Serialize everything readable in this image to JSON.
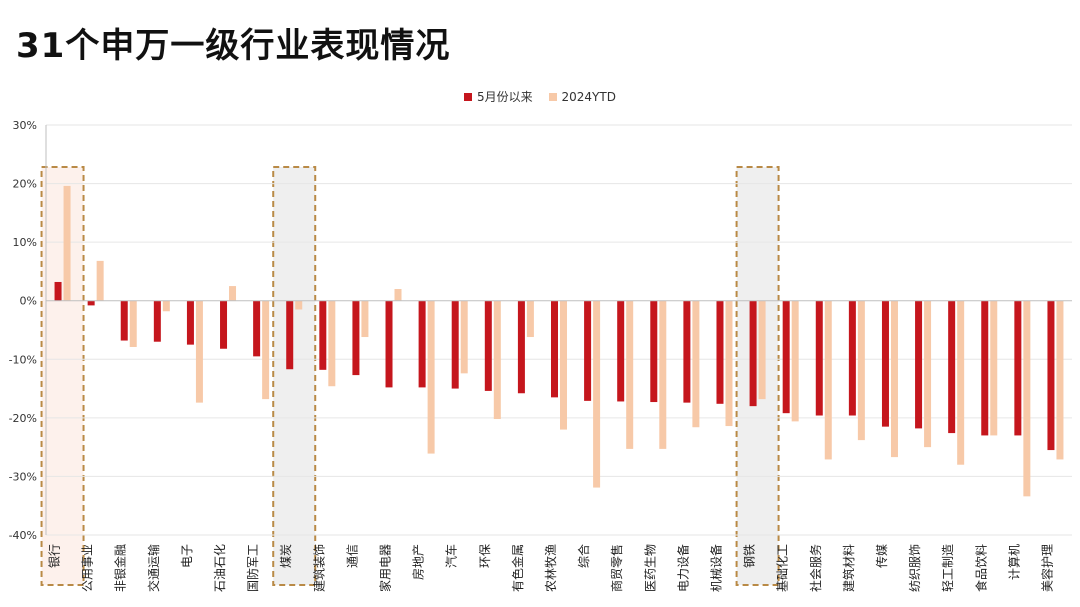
{
  "title": "31个申万一级行业表现情况",
  "colors": {
    "series1": "#c5161d",
    "series2": "#f7c9a8",
    "highlight_fill_pink": "#fdf1ec",
    "highlight_fill_gray": "#efefef",
    "highlight_border": "#b98a46",
    "axis": "#bfbfbf",
    "grid": "#e6e6e6"
  },
  "chart_data": {
    "type": "bar",
    "title": "",
    "xlabel": "",
    "ylabel": "",
    "ylim": [
      -40,
      30
    ],
    "yticks": [
      30,
      20,
      10,
      0,
      -10,
      -20,
      -30,
      -40
    ],
    "ytick_labels": [
      "30%",
      "20%",
      "10%",
      "0%",
      "-10%",
      "-20%",
      "-30%",
      "-40%"
    ],
    "grid": true,
    "legend_position": "top-center",
    "categories": [
      "银行",
      "公用事业",
      "非银金融",
      "交通运输",
      "电子",
      "石油石化",
      "国防军工",
      "煤炭",
      "建筑装饰",
      "通信",
      "家用电器",
      "房地产",
      "汽车",
      "环保",
      "有色金属",
      "农林牧渔",
      "综合",
      "商贸零售",
      "医药生物",
      "电力设备",
      "机械设备",
      "钢铁",
      "基础化工",
      "社会服务",
      "建筑材料",
      "传媒",
      "纺织服饰",
      "轻工制造",
      "食品饮料",
      "计算机",
      "美容护理"
    ],
    "series": [
      {
        "name": "5月份以来",
        "values": [
          3.2,
          -0.8,
          -6.8,
          -7.0,
          -7.5,
          -8.2,
          -9.5,
          -11.7,
          -11.8,
          -12.7,
          -14.8,
          -14.8,
          -15.0,
          -15.4,
          -15.8,
          -16.5,
          -17.1,
          -17.2,
          -17.3,
          -17.4,
          -17.6,
          -18.0,
          -19.2,
          -19.6,
          -19.6,
          -21.5,
          -21.8,
          -22.6,
          -23.0,
          -23.0,
          -25.5
        ]
      },
      {
        "name": "2024YTD",
        "values": [
          19.6,
          6.8,
          -7.9,
          -1.8,
          -17.4,
          2.5,
          -16.8,
          -1.5,
          -14.6,
          -6.2,
          2.0,
          -26.1,
          -12.4,
          -20.2,
          -6.2,
          -22.0,
          -31.9,
          -25.3,
          -25.3,
          -21.6,
          -21.4,
          -16.8,
          -20.6,
          -27.1,
          -23.8,
          -26.7,
          -25.0,
          -28.0,
          -23.0,
          -33.4,
          -27.1
        ]
      }
    ],
    "highlighted_categories": [
      {
        "category": "银行",
        "fill": "pink"
      },
      {
        "category": "煤炭",
        "fill": "gray"
      },
      {
        "category": "钢铁",
        "fill": "gray"
      }
    ]
  }
}
